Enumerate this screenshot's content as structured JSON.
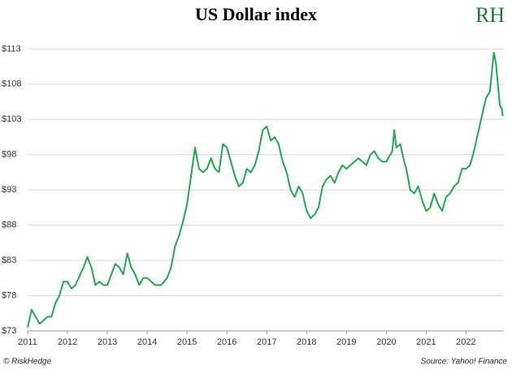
{
  "chart_data": {
    "type": "line",
    "title": "US Dollar index",
    "logo": "RH",
    "credit": "© RiskHedge",
    "source": "Source: Yahoo! Finance",
    "xlim": [
      2011,
      2022.95
    ],
    "ylim": [
      73,
      115
    ],
    "xticks": [
      2011,
      2012,
      2013,
      2014,
      2015,
      2016,
      2017,
      2018,
      2019,
      2020,
      2021,
      2022
    ],
    "yticks": [
      {
        "value": 73,
        "label": "$73"
      },
      {
        "value": 78,
        "label": "$78"
      },
      {
        "value": 83,
        "label": "$83"
      },
      {
        "value": 88,
        "label": "$88"
      },
      {
        "value": 93,
        "label": "$93"
      },
      {
        "value": 98,
        "label": "$98"
      },
      {
        "value": 103,
        "label": "$103"
      },
      {
        "value": 108,
        "label": "$108"
      },
      {
        "value": 113,
        "label": "$113"
      }
    ],
    "grid": true,
    "series": [
      {
        "name": "US Dollar index",
        "color": "#1fa84f",
        "x": [
          2011.0,
          2011.1,
          2011.2,
          2011.3,
          2011.4,
          2011.5,
          2011.6,
          2011.7,
          2011.8,
          2011.9,
          2012.0,
          2012.1,
          2012.2,
          2012.4,
          2012.5,
          2012.6,
          2012.7,
          2012.8,
          2012.9,
          2013.0,
          2013.1,
          2013.2,
          2013.3,
          2013.4,
          2013.5,
          2013.6,
          2013.7,
          2013.8,
          2013.9,
          2014.0,
          2014.2,
          2014.35,
          2014.5,
          2014.6,
          2014.7,
          2014.8,
          2014.9,
          2015.0,
          2015.1,
          2015.2,
          2015.3,
          2015.4,
          2015.5,
          2015.6,
          2015.7,
          2015.8,
          2015.9,
          2016.0,
          2016.1,
          2016.2,
          2016.3,
          2016.4,
          2016.5,
          2016.6,
          2016.7,
          2016.8,
          2016.9,
          2017.0,
          2017.1,
          2017.2,
          2017.3,
          2017.4,
          2017.5,
          2017.6,
          2017.7,
          2017.8,
          2017.9,
          2018.0,
          2018.1,
          2018.2,
          2018.3,
          2018.4,
          2018.5,
          2018.6,
          2018.7,
          2018.8,
          2018.9,
          2019.0,
          2019.1,
          2019.2,
          2019.3,
          2019.4,
          2019.5,
          2019.6,
          2019.7,
          2019.8,
          2019.9,
          2020.0,
          2020.15,
          2020.2,
          2020.25,
          2020.35,
          2020.45,
          2020.5,
          2020.6,
          2020.7,
          2020.8,
          2020.9,
          2021.0,
          2021.1,
          2021.2,
          2021.3,
          2021.4,
          2021.5,
          2021.6,
          2021.7,
          2021.8,
          2021.9,
          2022.0,
          2022.1,
          2022.2,
          2022.3,
          2022.4,
          2022.5,
          2022.6,
          2022.7,
          2022.75,
          2022.8,
          2022.85,
          2022.9,
          2022.92
        ],
        "values": [
          73.5,
          76,
          75,
          74,
          74.5,
          75,
          75,
          77,
          78,
          80,
          80,
          79,
          79.5,
          82,
          83.5,
          82,
          79.5,
          80,
          79.5,
          79.5,
          81,
          82.5,
          82,
          81,
          84,
          82,
          81,
          79.5,
          80.5,
          80.5,
          79.5,
          79.5,
          80.5,
          82,
          85,
          86.5,
          88.5,
          91,
          95,
          99,
          96,
          95.5,
          96,
          97.5,
          96,
          95.5,
          99.5,
          99,
          97,
          95,
          93.5,
          94,
          96,
          95.5,
          96.5,
          98.5,
          101.5,
          102,
          100,
          100.5,
          99.5,
          97,
          95.5,
          93,
          92,
          93.5,
          92.5,
          90,
          89,
          89.5,
          90.5,
          93.5,
          94.5,
          95,
          94,
          95.5,
          96.5,
          96,
          96.5,
          97,
          97.5,
          97,
          96.5,
          98,
          98.5,
          97.5,
          97,
          97,
          98.5,
          101.5,
          99,
          99.5,
          97,
          96,
          93,
          92.5,
          93.5,
          91.5,
          90,
          90.5,
          92.5,
          91,
          90,
          92,
          92.5,
          93.5,
          94,
          96,
          96,
          96.5,
          98.5,
          101,
          103.5,
          106,
          107,
          112.5,
          111,
          108,
          105,
          104.5,
          103.5
        ]
      }
    ]
  }
}
